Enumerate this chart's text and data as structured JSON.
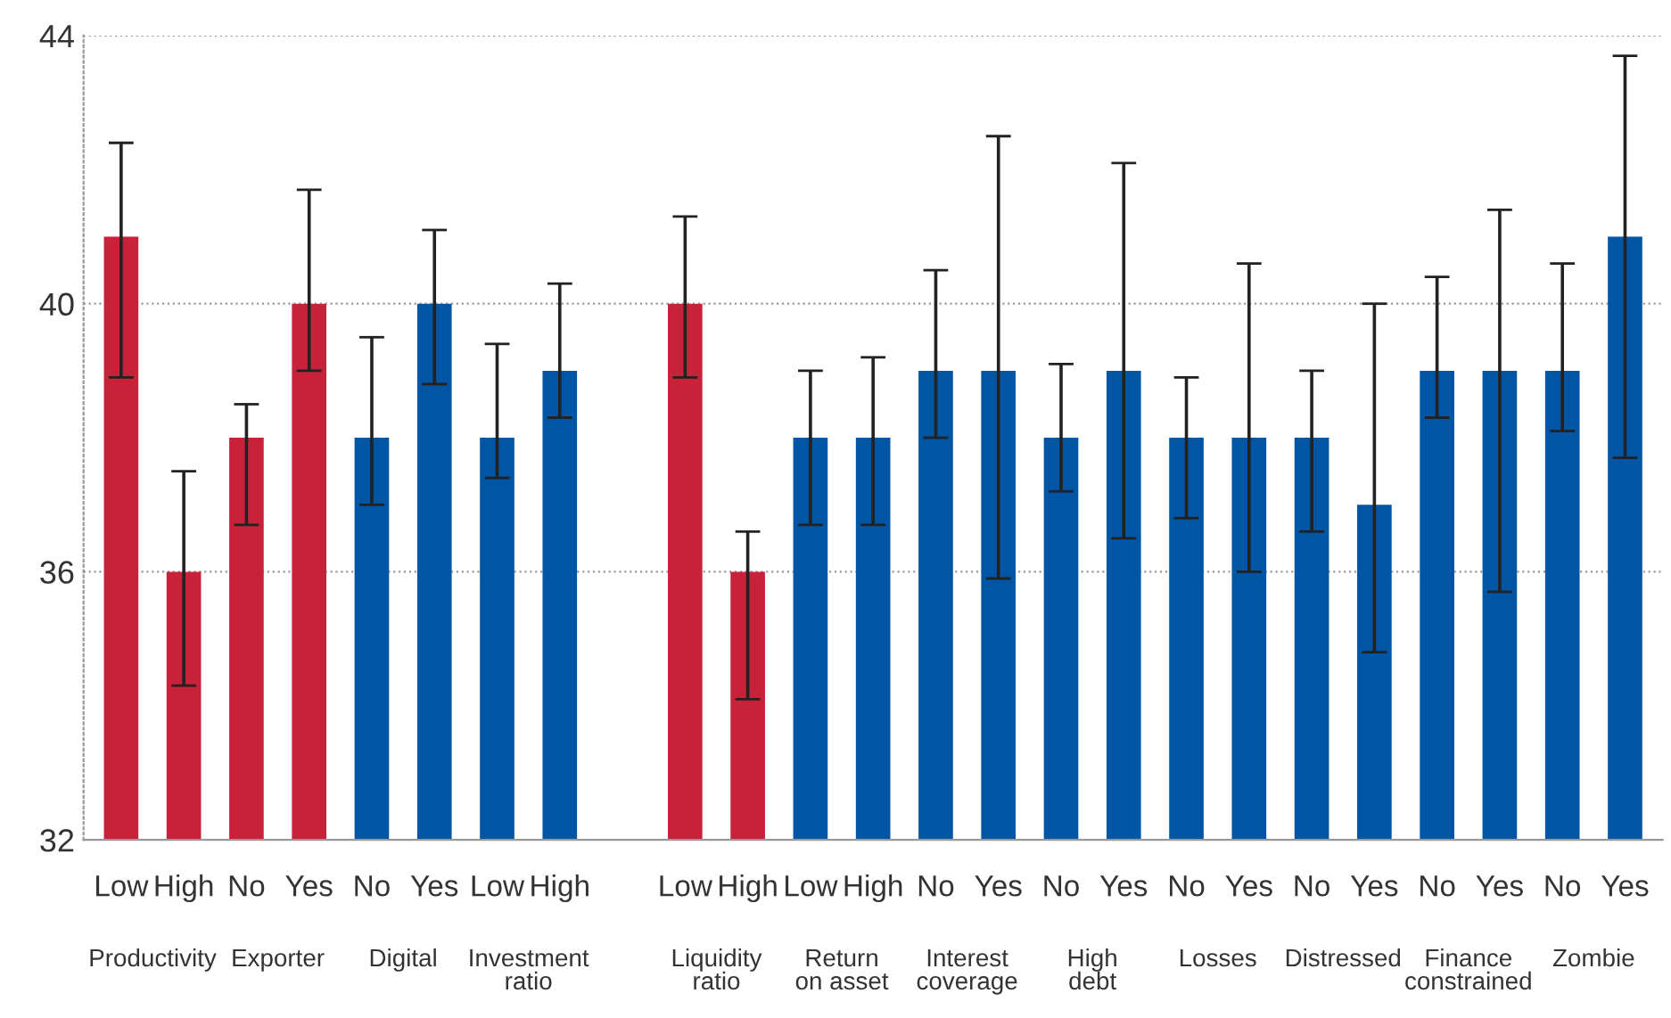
{
  "chart_data": {
    "type": "bar",
    "categories": [
      "Low",
      "High",
      "No",
      "Yes",
      "No",
      "Yes",
      "Low",
      "High",
      null,
      "Low",
      "High",
      "Low",
      "High",
      "No",
      "Yes",
      "No",
      "Yes",
      "No",
      "Yes",
      "No",
      "Yes",
      "No",
      "Yes",
      "No",
      "Yes"
    ],
    "values": [
      41,
      36,
      38,
      40,
      38,
      40,
      38,
      39,
      null,
      40,
      36,
      38,
      38,
      39,
      39,
      38,
      39,
      38,
      38,
      38,
      37,
      39,
      39,
      39,
      41
    ],
    "colors": [
      "#c8213a",
      "#c8213a",
      "#c8213a",
      "#c8213a",
      "#0055a5",
      "#0055a5",
      "#0055a5",
      "#0055a5",
      "#0055a5",
      "#c8213a",
      "#c8213a",
      "#0055a5",
      "#0055a5",
      "#0055a5",
      "#0055a5",
      "#0055a5",
      "#0055a5",
      "#0055a5",
      "#0055a5",
      "#0055a5",
      "#0055a5",
      "#0055a5",
      "#0055a5",
      "#0055a5",
      "#0055a5"
    ],
    "errors": [
      [
        38.9,
        42.4
      ],
      [
        34.3,
        37.5
      ],
      [
        36.7,
        38.5
      ],
      [
        39.0,
        41.7
      ],
      [
        37.0,
        39.5
      ],
      [
        38.8,
        41.1
      ],
      [
        37.4,
        39.4
      ],
      [
        38.3,
        40.3
      ],
      null,
      [
        38.9,
        41.3
      ],
      [
        34.1,
        36.6
      ],
      [
        36.7,
        39.0
      ],
      [
        36.7,
        39.2
      ],
      [
        38.0,
        40.5
      ],
      [
        35.9,
        42.5
      ],
      [
        37.2,
        39.1
      ],
      [
        36.5,
        42.1
      ],
      [
        36.8,
        38.9
      ],
      [
        36.0,
        40.6
      ],
      [
        36.6,
        39.0
      ],
      [
        34.8,
        40.0
      ],
      [
        38.3,
        40.4
      ],
      [
        35.7,
        41.4
      ],
      [
        38.1,
        40.6
      ],
      [
        37.7,
        43.7
      ]
    ],
    "annotations": [
      "Productivity",
      "Exporter",
      "Digital",
      "Investment\nratio",
      "Liquidity\nratio",
      "Return\non asset",
      "Interest\ncoverage",
      "High\ndebt",
      "Losses",
      "Distressed",
      "Finance\nconstrained",
      "Zombie"
    ],
    "ylim": [
      32,
      44
    ],
    "yticks": [
      32,
      36,
      40,
      44
    ],
    "grid": "y"
  }
}
